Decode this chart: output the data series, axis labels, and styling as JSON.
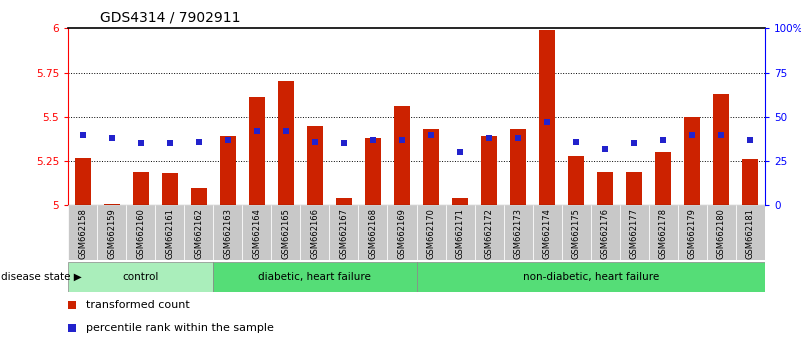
{
  "title": "GDS4314 / 7902911",
  "samples": [
    "GSM662158",
    "GSM662159",
    "GSM662160",
    "GSM662161",
    "GSM662162",
    "GSM662163",
    "GSM662164",
    "GSM662165",
    "GSM662166",
    "GSM662167",
    "GSM662168",
    "GSM662169",
    "GSM662170",
    "GSM662171",
    "GSM662172",
    "GSM662173",
    "GSM662174",
    "GSM662175",
    "GSM662176",
    "GSM662177",
    "GSM662178",
    "GSM662179",
    "GSM662180",
    "GSM662181"
  ],
  "bar_values": [
    5.27,
    5.01,
    5.19,
    5.18,
    5.1,
    5.39,
    5.61,
    5.7,
    5.45,
    5.04,
    5.38,
    5.56,
    5.43,
    5.04,
    5.39,
    5.43,
    5.99,
    5.28,
    5.19,
    5.19,
    5.3,
    5.5,
    5.63,
    5.26
  ],
  "blue_dot_values": [
    40,
    38,
    35,
    35,
    36,
    37,
    42,
    42,
    36,
    35,
    37,
    37,
    40,
    30,
    38,
    38,
    47,
    36,
    32,
    35,
    37,
    40,
    40,
    37
  ],
  "ylim_left": [
    5.0,
    6.0
  ],
  "ylim_right": [
    0,
    100
  ],
  "left_ticks": [
    5.0,
    5.25,
    5.5,
    5.75,
    6.0
  ],
  "right_ticks": [
    0,
    25,
    50,
    75,
    100
  ],
  "right_tick_labels": [
    "0",
    "25",
    "50",
    "75",
    "100%"
  ],
  "left_tick_labels": [
    "5",
    "5.25",
    "5.5",
    "5.75",
    "6"
  ],
  "bar_color": "#CC2200",
  "dot_color": "#2222CC",
  "bar_width": 0.55,
  "xtick_bg_color": "#C8C8C8",
  "background_plot": "#FFFFFF",
  "group_configs": [
    {
      "start": 0,
      "end": 5,
      "label": "control",
      "color": "#AAEEBB"
    },
    {
      "start": 5,
      "end": 12,
      "label": "diabetic, heart failure",
      "color": "#55DD77"
    },
    {
      "start": 12,
      "end": 24,
      "label": "non-diabetic, heart failure",
      "color": "#55DD77"
    }
  ],
  "legend_transformed": "transformed count",
  "legend_percentile": "percentile rank within the sample",
  "disease_state_label": "disease state"
}
